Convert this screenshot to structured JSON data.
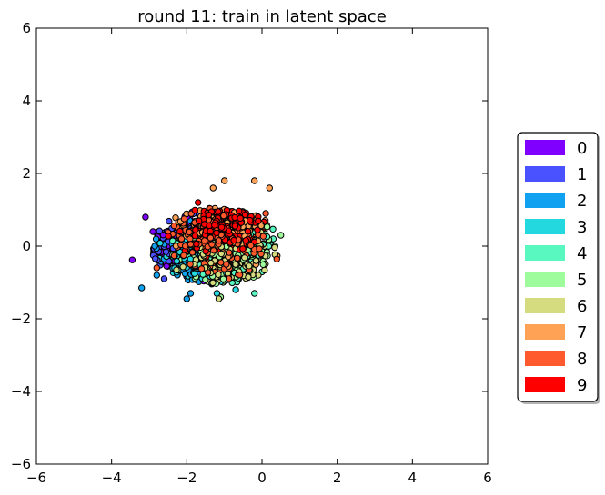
{
  "chart_data": {
    "type": "scatter",
    "title": "round 11: train in latent space",
    "xlabel": "",
    "ylabel": "",
    "xlim": [
      -6,
      6
    ],
    "ylim": [
      -6,
      6
    ],
    "x_ticks": [
      -6,
      -4,
      -2,
      0,
      2,
      4,
      6
    ],
    "y_ticks": [
      -6,
      -4,
      -2,
      0,
      2,
      4,
      6
    ],
    "x_tick_labels": [
      "−6",
      "−4",
      "−2",
      "0",
      "2",
      "4",
      "6"
    ],
    "y_tick_labels": [
      "−6",
      "−4",
      "−2",
      "0",
      "2",
      "4",
      "6"
    ],
    "grid": false,
    "legend_position": "right",
    "cluster_center": [
      -1.2,
      0.0
    ],
    "series": [
      {
        "name": "0",
        "color": "#8000ff",
        "center": [
          -2.0,
          0.0
        ],
        "spread": [
          0.55,
          0.45
        ],
        "points": [
          [
            -3.45,
            -0.38
          ],
          [
            -3.1,
            0.8
          ],
          [
            -2.9,
            0.4
          ],
          [
            -2.3,
            0.3
          ],
          [
            -1.7,
            -0.2
          ]
        ]
      },
      {
        "name": "1",
        "color": "#4a52ff",
        "center": [
          -2.1,
          -0.1
        ],
        "spread": [
          0.6,
          0.45
        ],
        "points": [
          [
            -2.6,
            -0.9
          ],
          [
            -2.4,
            0.2
          ]
        ]
      },
      {
        "name": "2",
        "color": "#10a2f0",
        "center": [
          -1.9,
          -0.4
        ],
        "spread": [
          0.6,
          0.4
        ],
        "points": [
          [
            -3.2,
            -1.15
          ],
          [
            -2.8,
            -0.8
          ],
          [
            -1.9,
            -1.3
          ],
          [
            -2.0,
            -1.45
          ]
        ]
      },
      {
        "name": "3",
        "color": "#24d8e0",
        "center": [
          -1.4,
          -0.2
        ],
        "spread": [
          0.65,
          0.45
        ],
        "points": [
          [
            -1.2,
            -1.3
          ],
          [
            -0.7,
            -1.2
          ]
        ]
      },
      {
        "name": "4",
        "color": "#58f8c0",
        "center": [
          -1.0,
          -0.1
        ],
        "spread": [
          0.65,
          0.45
        ],
        "points": [
          [
            -0.2,
            -1.3
          ],
          [
            0.3,
            0.2
          ]
        ]
      },
      {
        "name": "5",
        "color": "#9ffc9c",
        "center": [
          -0.8,
          -0.3
        ],
        "spread": [
          0.6,
          0.45
        ],
        "points": [
          [
            0.5,
            0.3
          ],
          [
            -1.1,
            -1.4
          ]
        ]
      },
      {
        "name": "6",
        "color": "#d4dc7f",
        "center": [
          -0.9,
          -0.5
        ],
        "spread": [
          0.55,
          0.4
        ],
        "points": [
          [
            -1.15,
            -1.45
          ],
          [
            -0.1,
            -0.8
          ]
        ]
      },
      {
        "name": "7",
        "color": "#ffa256",
        "center": [
          -0.9,
          0.5
        ],
        "spread": [
          0.6,
          0.4
        ],
        "points": [
          [
            -1.0,
            1.8
          ],
          [
            -0.2,
            1.8
          ],
          [
            0.2,
            1.6
          ],
          [
            -1.3,
            1.6
          ]
        ]
      },
      {
        "name": "8",
        "color": "#ff5a2e",
        "center": [
          -1.2,
          0.1
        ],
        "spread": [
          0.6,
          0.45
        ],
        "points": [
          [
            -2.8,
            -0.6
          ],
          [
            0.1,
            0.9
          ]
        ]
      },
      {
        "name": "9",
        "color": "#ff0000",
        "center": [
          -1.0,
          0.6
        ],
        "spread": [
          0.55,
          0.35
        ],
        "points": [
          [
            -1.7,
            1.2
          ],
          [
            -0.5,
            0.9
          ]
        ]
      }
    ]
  }
}
